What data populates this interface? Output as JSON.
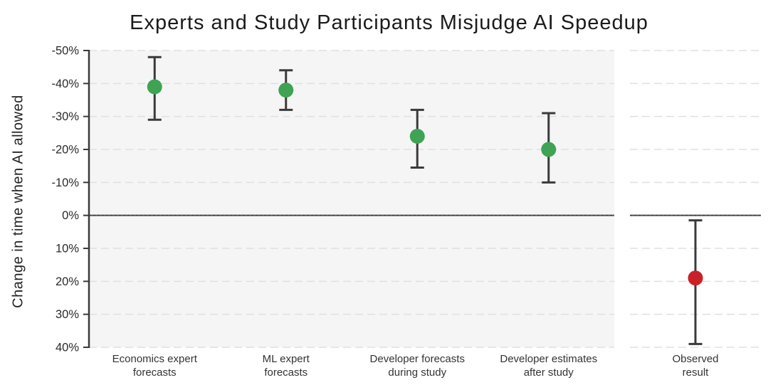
{
  "chart_data": {
    "type": "scatter",
    "title": "Experts and Study Participants Misjudge AI Speedup",
    "ylabel": "Change in time when AI allowed",
    "xlabel": "",
    "y_axis": {
      "min": -50,
      "max": 40,
      "step": 10,
      "inverted": true,
      "unit": "%"
    },
    "yticks": [
      -50,
      -40,
      -30,
      -20,
      -10,
      0,
      10,
      20,
      30,
      40
    ],
    "ytick_labels": [
      "-50%",
      "-40%",
      "-30%",
      "-20%",
      "-10%",
      "0%",
      "10%",
      "20%",
      "30%",
      "40%"
    ],
    "zero_line": 0,
    "grid": "dashed-horizontal",
    "legend": "none",
    "panels": [
      {
        "name": "forecasts",
        "background": "#f5f5f5"
      },
      {
        "name": "observed",
        "background": "#ffffff"
      }
    ],
    "points": [
      {
        "category": "Economics expert forecasts",
        "label_lines": [
          "Economics expert",
          "forecasts"
        ],
        "value": -39,
        "ci": [
          -48,
          -29
        ],
        "color": "#3ea353",
        "panel": "forecasts"
      },
      {
        "category": "ML expert forecasts",
        "label_lines": [
          "ML expert",
          "forecasts"
        ],
        "value": -38,
        "ci": [
          -44,
          -32
        ],
        "color": "#3ea353",
        "panel": "forecasts"
      },
      {
        "category": "Developer forecasts during study",
        "label_lines": [
          "Developer forecasts",
          "during study"
        ],
        "value": -24,
        "ci": [
          -32,
          -14.5
        ],
        "color": "#3ea353",
        "panel": "forecasts"
      },
      {
        "category": "Developer estimates after study",
        "label_lines": [
          "Developer estimates",
          "after study"
        ],
        "value": -20,
        "ci": [
          -31,
          -10
        ],
        "color": "#3ea353",
        "panel": "forecasts"
      },
      {
        "category": "Observed result",
        "label_lines": [
          "Observed",
          "result"
        ],
        "value": 19,
        "ci": [
          1.5,
          39
        ],
        "color": "#c92127",
        "panel": "observed"
      }
    ],
    "colors": {
      "forecast_dot": "#3ea353",
      "observed_dot": "#c92127",
      "errorbar": "#3a3a3a",
      "axis": "#3a3a3a",
      "gridline": "#e0e0e0",
      "zero_line": "#4f4f4f",
      "panel_bg": "#f5f5f5",
      "tick_text": "#2a2a2a",
      "category_text": "#333333",
      "title_text": "#1b1b1b"
    }
  }
}
